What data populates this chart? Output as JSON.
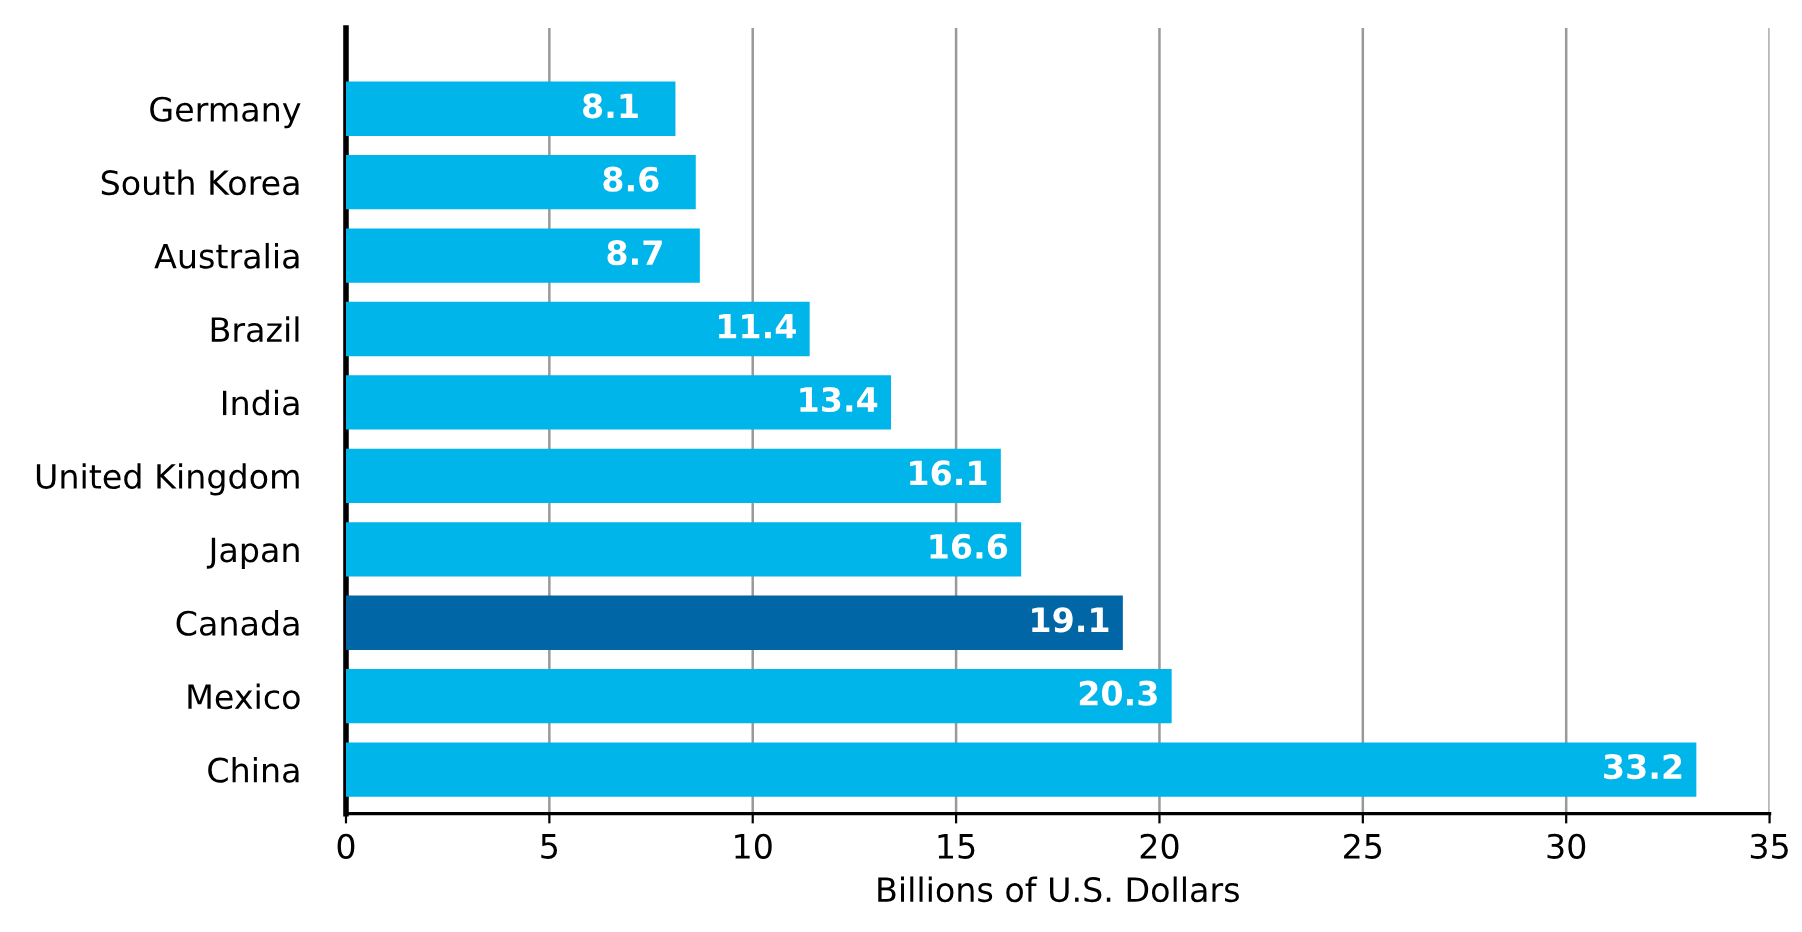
{
  "chart_data": {
    "type": "bar",
    "orientation": "horizontal",
    "xlabel": "Billions of U.S. Dollars",
    "categories": [
      "Germany",
      "South Korea",
      "Australia",
      "Brazil",
      "India",
      "United Kingdom",
      "Japan",
      "Canada",
      "Mexico",
      "China"
    ],
    "values": [
      8.1,
      8.6,
      8.7,
      11.4,
      13.4,
      16.1,
      16.6,
      19.1,
      20.3,
      33.2
    ],
    "colors": [
      "#00b5ea",
      "#00b5ea",
      "#00b5ea",
      "#00b5ea",
      "#00b5ea",
      "#00b5ea",
      "#00b5ea",
      "#0066a6",
      "#00b5ea",
      "#00b5ea"
    ],
    "xlim": [
      0,
      35
    ],
    "xticks": [
      0,
      5,
      10,
      15,
      20,
      25,
      30,
      35
    ],
    "grid": "x",
    "data_labels": true,
    "legend": false
  }
}
